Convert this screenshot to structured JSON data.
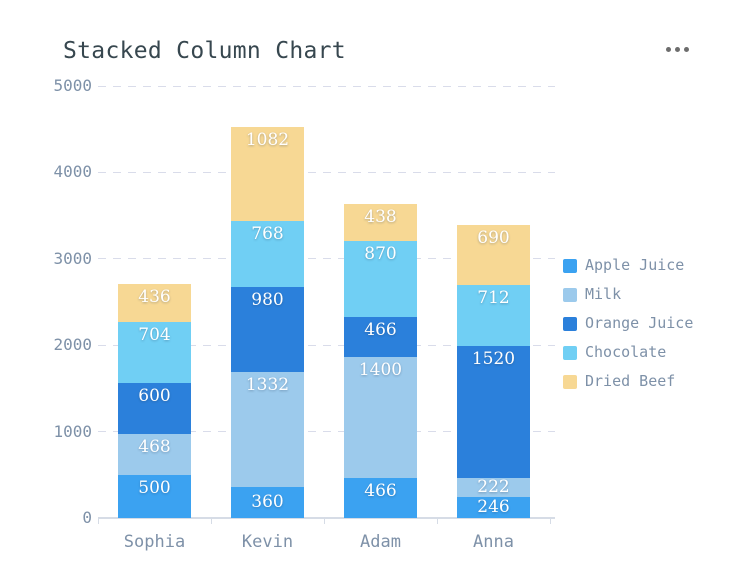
{
  "header": {
    "title": "Stacked Column Chart",
    "menu_icon": "ellipsis-icon"
  },
  "palette": {
    "title_text": "#37474F",
    "axis_text": "#7E91A8",
    "grid_line": "#D9DCEA",
    "axis_line": "#D6DCE6",
    "value_label_text": "#FFFFFF",
    "menu_dots": "#6D6D6D",
    "background": "#FFFFFF"
  },
  "chart_data": {
    "type": "bar",
    "stacked": true,
    "title": "Stacked Column Chart",
    "categories": [
      "Sophia",
      "Kevin",
      "Adam",
      "Anna"
    ],
    "series": [
      {
        "name": "Apple Juice",
        "color": "#3BA2F1",
        "values": [
          500,
          360,
          466,
          246
        ]
      },
      {
        "name": "Milk",
        "color": "#9CCAEC",
        "values": [
          468,
          1332,
          1400,
          222
        ]
      },
      {
        "name": "Orange Juice",
        "color": "#2B80DB",
        "values": [
          600,
          980,
          466,
          1520
        ]
      },
      {
        "name": "Chocolate",
        "color": "#70CFF4",
        "values": [
          704,
          768,
          870,
          712
        ]
      },
      {
        "name": "Dried Beef",
        "color": "#F7D894",
        "values": [
          436,
          1082,
          438,
          690
        ]
      }
    ],
    "totals": [
      2708,
      4522,
      3640,
      3390
    ],
    "ylim": [
      0,
      5000
    ],
    "yticks": [
      0,
      1000,
      2000,
      3000,
      4000,
      5000
    ],
    "grid": "dashed-horizontal",
    "value_labels": "inside-top-white",
    "legend_position": "right"
  }
}
